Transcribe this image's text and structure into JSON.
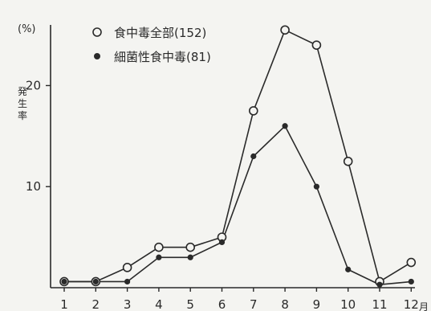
{
  "chart_data": {
    "type": "line",
    "ylabel": "発生率",
    "y_unit": "(%)",
    "x_unit": "月",
    "categories": [
      "1",
      "2",
      "3",
      "4",
      "5",
      "6",
      "7",
      "8",
      "9",
      "10",
      "11",
      "12"
    ],
    "ylim": [
      0,
      26
    ],
    "yticks": [
      10,
      20
    ],
    "grid": false,
    "legend_position": "top-left",
    "series": [
      {
        "name": "食中毒全部(152)",
        "marker": "open-circle",
        "values": [
          0.6,
          0.6,
          2.0,
          4.0,
          4.0,
          5.0,
          17.5,
          25.5,
          24.0,
          12.5,
          0.6,
          2.5
        ]
      },
      {
        "name": "細菌性食中毒(81)",
        "marker": "filled-circle",
        "values": [
          0.6,
          0.6,
          0.6,
          3.0,
          3.0,
          4.5,
          13.0,
          16.0,
          10.0,
          1.8,
          0.3,
          0.6
        ]
      }
    ]
  },
  "colors": {
    "ink": "#2a2a2a",
    "background": "#f4f4f1"
  }
}
